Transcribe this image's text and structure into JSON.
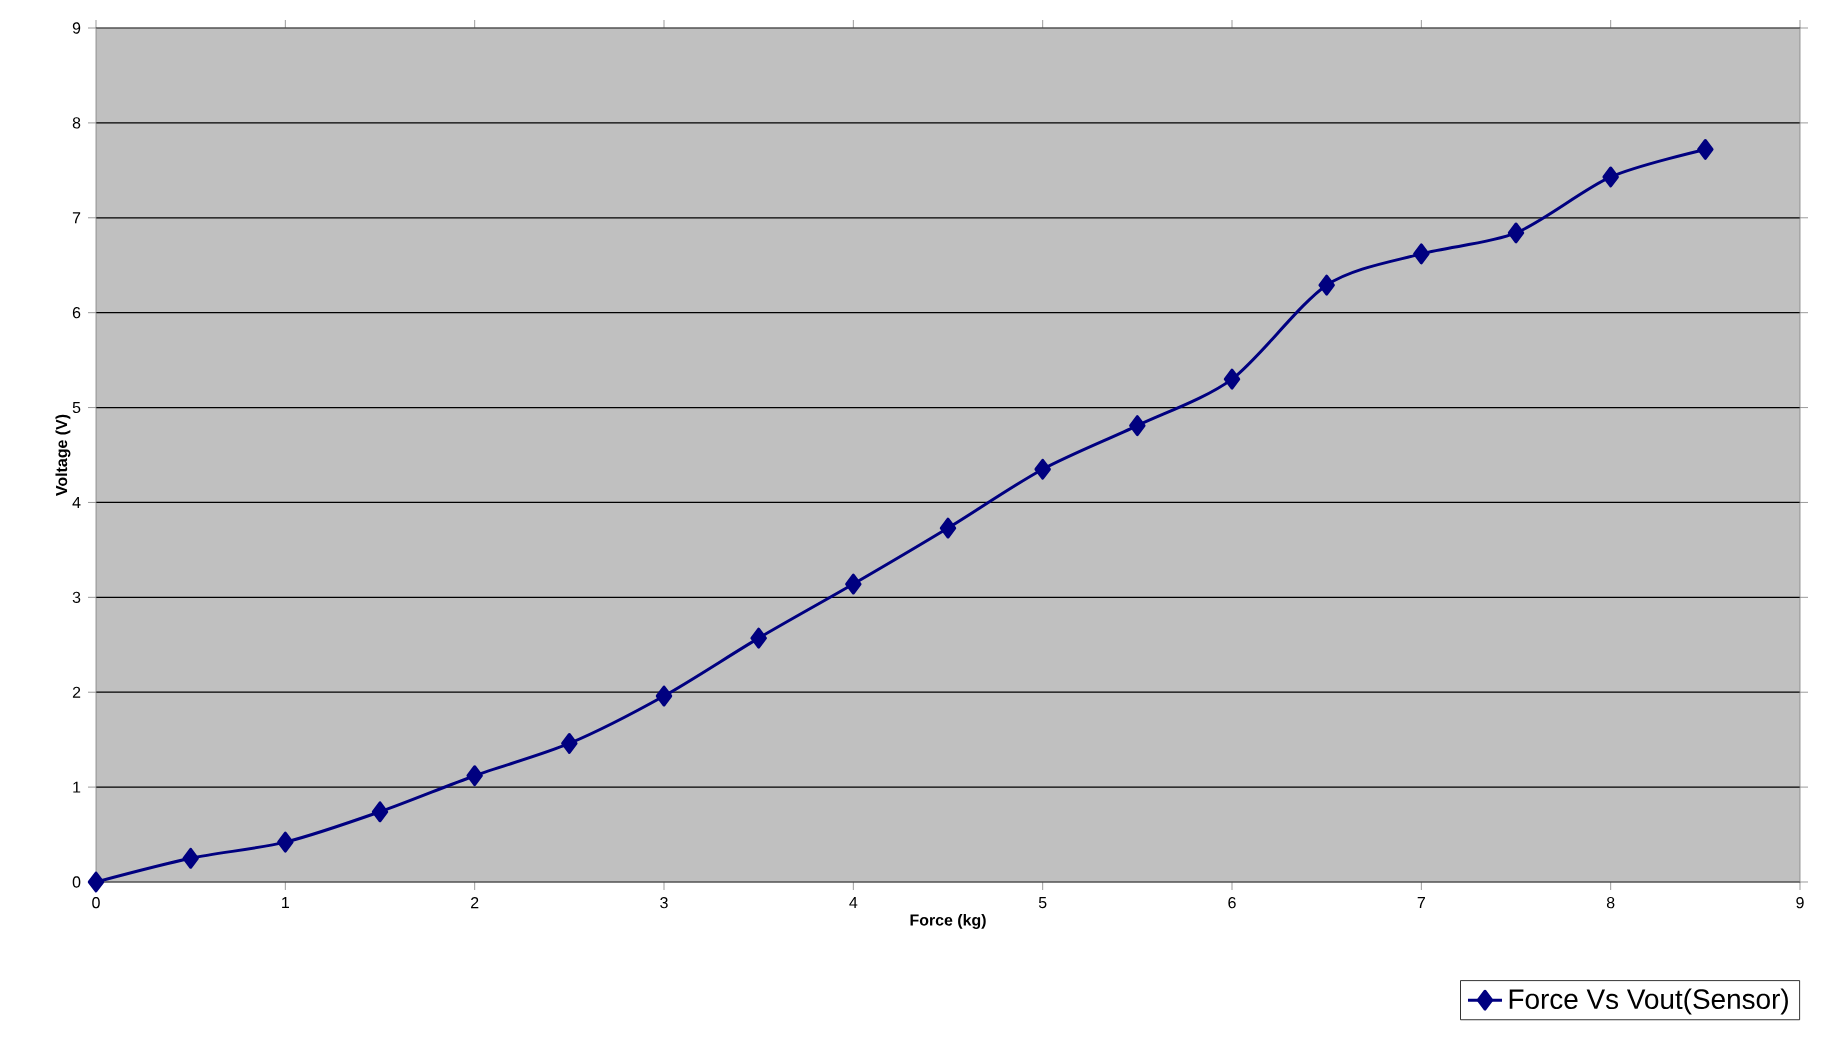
{
  "chart_data": {
    "type": "line",
    "xlabel": "Force (kg)",
    "ylabel": "Voltage (V)",
    "xlim": [
      0,
      9
    ],
    "ylim": [
      0,
      9
    ],
    "xticks": [
      0,
      1,
      2,
      3,
      4,
      5,
      6,
      7,
      8,
      9
    ],
    "yticks": [
      0,
      1,
      2,
      3,
      4,
      5,
      6,
      7,
      8,
      9
    ],
    "grid": "y",
    "legend": "bottom right",
    "marker": "diamond",
    "line_style": "solid",
    "series": [
      {
        "name": "Force Vs Vout(Sensor)",
        "color": "#000080",
        "x": [
          0,
          0.5,
          1,
          1.5,
          2,
          2.5,
          3,
          3.5,
          4,
          4.5,
          5,
          5.5,
          6,
          6.5,
          7,
          7.5,
          8,
          8.5
        ],
        "values": [
          0,
          0.25,
          0.42,
          0.74,
          1.12,
          1.46,
          1.96,
          2.57,
          3.14,
          3.73,
          4.35,
          4.81,
          5.3,
          6.29,
          6.62,
          6.84,
          7.43,
          7.72
        ]
      }
    ]
  }
}
